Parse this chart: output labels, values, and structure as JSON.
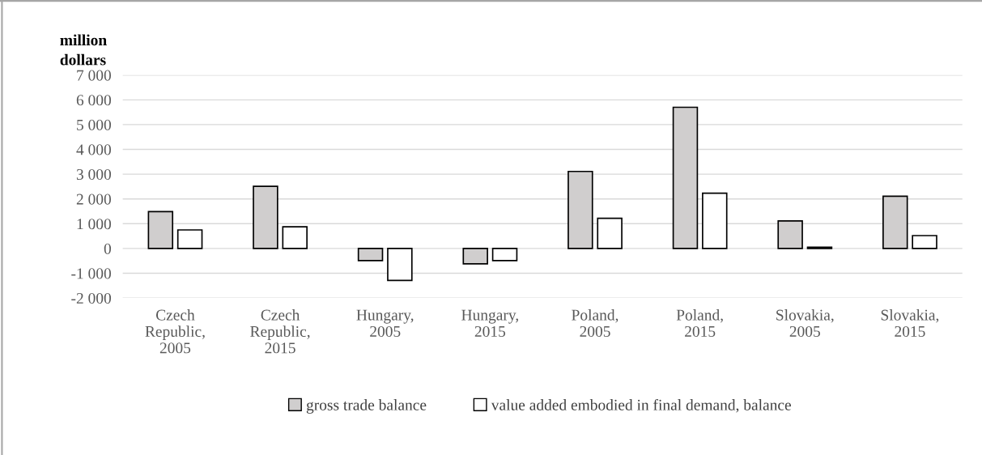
{
  "chart_data": {
    "type": "bar",
    "ylabel": "million\ndollars",
    "categories": [
      "Czech\nRepublic,\n2005",
      "Czech\nRepublic,\n2015",
      "Hungary,\n2005",
      "Hungary,\n2015",
      "Poland,\n2005",
      "Poland,\n2015",
      "Slovakia,\n2005",
      "Slovakia,\n2015"
    ],
    "series": [
      {
        "name": "gross trade balance",
        "color": "#d0cece",
        "values": [
          1490,
          2510,
          -490,
          -620,
          3110,
          5700,
          1110,
          2110
        ]
      },
      {
        "name": "value added embodied in final demand, balance",
        "color": "#ffffff",
        "values": [
          750,
          875,
          -1290,
          -490,
          1220,
          2230,
          50,
          520
        ]
      }
    ],
    "ylim": [
      -2000,
      7000
    ],
    "yticks": [
      {
        "value": -2000,
        "label": "-2 000"
      },
      {
        "value": -1000,
        "label": "-1 000"
      },
      0,
      {
        "value": 1000,
        "label": "1 000"
      },
      {
        "value": 2000,
        "label": "2 000"
      },
      {
        "value": 3000,
        "label": "3 000"
      },
      {
        "value": 4000,
        "label": "4 000"
      },
      {
        "value": 5000,
        "label": "5 000"
      },
      {
        "value": 6000,
        "label": "6 000"
      },
      {
        "value": 7000,
        "label": "7 000"
      }
    ],
    "grid": "y",
    "legend": "bottom"
  }
}
